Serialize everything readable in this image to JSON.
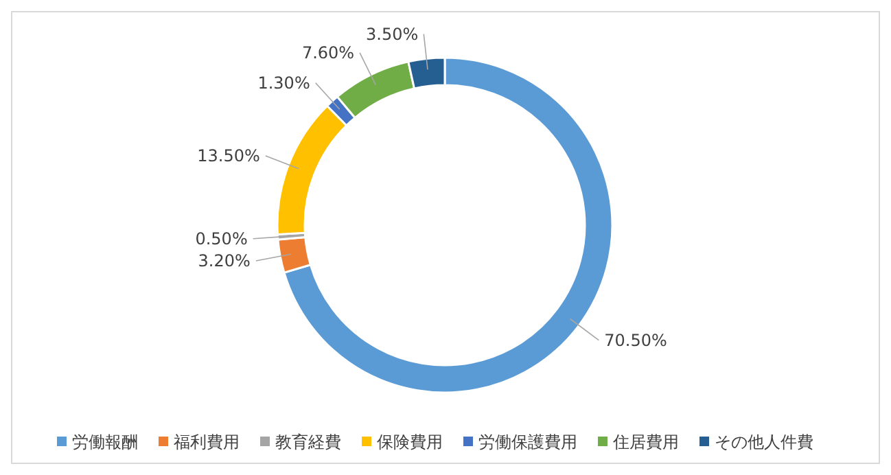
{
  "chart_data": {
    "type": "donut",
    "categories": [
      "労働報酬",
      "福利費用",
      "教育経費",
      "保険費用",
      "労働保護費用",
      "住居費用",
      "その他人件費"
    ],
    "values": [
      70.5,
      3.2,
      0.5,
      13.5,
      1.3,
      7.6,
      3.5
    ],
    "value_labels": [
      "70.50%",
      "3.20%",
      "0.50%",
      "13.50%",
      "1.30%",
      "7.60%",
      "3.50%"
    ],
    "colors": [
      "#5b9bd5",
      "#ed7d31",
      "#a5a5a5",
      "#ffc000",
      "#4472c4",
      "#70ad47",
      "#255e91"
    ],
    "legend": "bottom"
  }
}
